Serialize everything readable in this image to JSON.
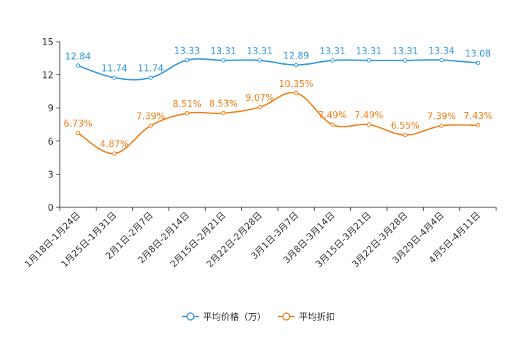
{
  "chart_data": {
    "type": "line",
    "categories": [
      "1月18日-1月24日",
      "1月25日-1月31日",
      "2月1日-2月7日",
      "2月8日-2月14日",
      "2月15日-2月21日",
      "2月22日-2月28日",
      "3月1日-3月7日",
      "3月8日-3月14日",
      "3月15日-3月21日",
      "3月22日-3月28日",
      "3月29日-4月4日",
      "4月5日-4月11日"
    ],
    "ylim": [
      0,
      15
    ],
    "yticks": [
      0,
      3,
      6,
      9,
      12,
      15
    ],
    "series": [
      {
        "name": "平均价格（万）",
        "color": "#3398DB",
        "values": [
          12.84,
          11.74,
          11.74,
          13.33,
          13.31,
          13.31,
          12.89,
          13.31,
          13.31,
          13.31,
          13.34,
          13.08
        ],
        "labels": [
          "12.84",
          "11.74",
          "11.74",
          "13.33",
          "13.31",
          "13.31",
          "12.89",
          "13.31",
          "13.31",
          "13.31",
          "13.34",
          "13.08"
        ]
      },
      {
        "name": "平均折扣",
        "color": "#F08019",
        "values": [
          6.73,
          4.87,
          7.39,
          8.51,
          8.53,
          9.07,
          10.35,
          7.49,
          7.49,
          6.55,
          7.39,
          7.43
        ],
        "labels": [
          "6.73%",
          "4.87%",
          "7.39%",
          "8.51%",
          "8.53%",
          "9.07%",
          "10.35%",
          "7.49%",
          "7.49%",
          "6.55%",
          "7.39%",
          "7.43%"
        ]
      }
    ],
    "legend_position": "bottom-center",
    "grid": false
  }
}
